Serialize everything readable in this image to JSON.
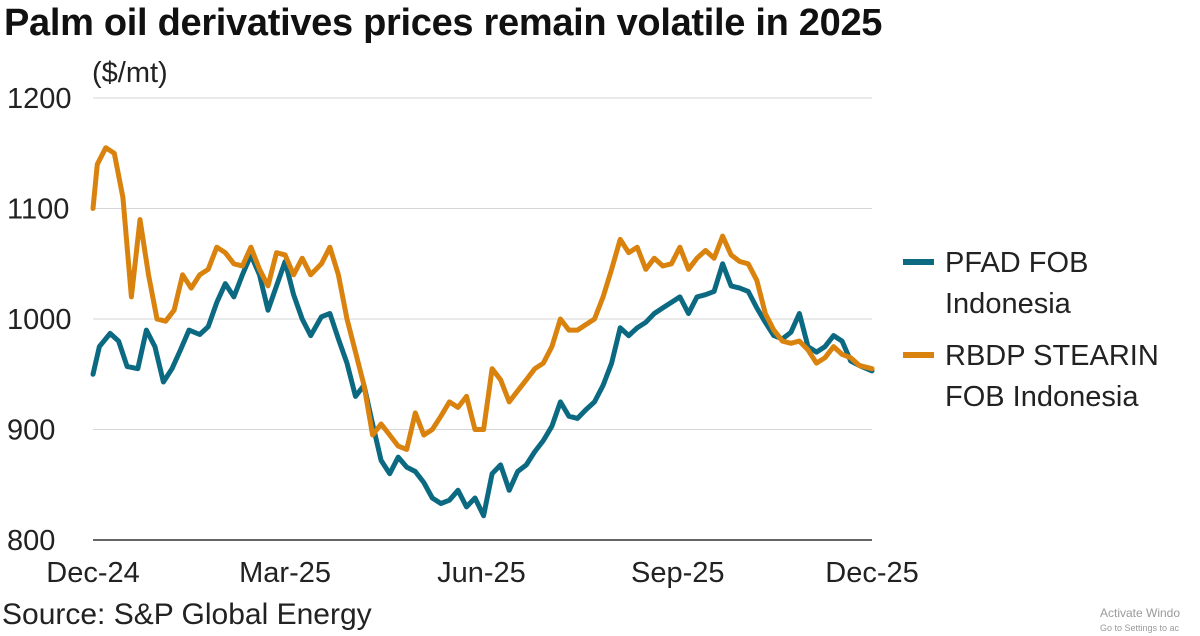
{
  "title": "Palm oil derivatives prices remain volatile in 2025",
  "source": "Source: S&P Global Energy",
  "watermark": {
    "line1": "Activate Windo",
    "line2": "Go to Settings to ac"
  },
  "chart_data": {
    "type": "line",
    "unit_label": "($/mt)",
    "ylim": [
      800,
      1200
    ],
    "yticks": [
      800,
      900,
      1000,
      1100,
      1200
    ],
    "xlim": [
      "2024-12-01",
      "2025-12-01"
    ],
    "xticks": [
      {
        "date": "2024-12-01",
        "label": "Dec-24"
      },
      {
        "date": "2025-03-01",
        "label": "Mar-25"
      },
      {
        "date": "2025-06-01",
        "label": "Jun-25"
      },
      {
        "date": "2025-09-01",
        "label": "Sep-25"
      },
      {
        "date": "2025-12-01",
        "label": "Dec-25"
      }
    ],
    "grid": true,
    "legend_position": "right",
    "series": [
      {
        "name_lines": [
          "PFAD FOB",
          "Indonesia"
        ],
        "color": "#0b6a82",
        "points": [
          [
            "2024-12-01",
            950
          ],
          [
            "2024-12-04",
            975
          ],
          [
            "2024-12-09",
            987
          ],
          [
            "2024-12-13",
            980
          ],
          [
            "2024-12-17",
            957
          ],
          [
            "2024-12-22",
            955
          ],
          [
            "2024-12-26",
            990
          ],
          [
            "2024-12-30",
            975
          ],
          [
            "2025-01-03",
            943
          ],
          [
            "2025-01-07",
            955
          ],
          [
            "2025-01-11",
            972
          ],
          [
            "2025-01-15",
            990
          ],
          [
            "2025-01-20",
            986
          ],
          [
            "2025-01-24",
            993
          ],
          [
            "2025-01-28",
            1015
          ],
          [
            "2025-02-01",
            1032
          ],
          [
            "2025-02-05",
            1020
          ],
          [
            "2025-02-09",
            1040
          ],
          [
            "2025-02-13",
            1058
          ],
          [
            "2025-02-17",
            1040
          ],
          [
            "2025-02-21",
            1008
          ],
          [
            "2025-02-25",
            1030
          ],
          [
            "2025-03-01",
            1052
          ],
          [
            "2025-03-05",
            1022
          ],
          [
            "2025-03-09",
            1000
          ],
          [
            "2025-03-13",
            985
          ],
          [
            "2025-03-18",
            1002
          ],
          [
            "2025-03-22",
            1005
          ],
          [
            "2025-03-26",
            982
          ],
          [
            "2025-03-30",
            960
          ],
          [
            "2025-04-03",
            930
          ],
          [
            "2025-04-07",
            940
          ],
          [
            "2025-04-11",
            905
          ],
          [
            "2025-04-15",
            872
          ],
          [
            "2025-04-19",
            860
          ],
          [
            "2025-04-23",
            875
          ],
          [
            "2025-04-27",
            866
          ],
          [
            "2025-05-01",
            862
          ],
          [
            "2025-05-05",
            852
          ],
          [
            "2025-05-09",
            838
          ],
          [
            "2025-05-13",
            833
          ],
          [
            "2025-05-17",
            836
          ],
          [
            "2025-05-21",
            845
          ],
          [
            "2025-05-25",
            830
          ],
          [
            "2025-05-29",
            838
          ],
          [
            "2025-06-02",
            822
          ],
          [
            "2025-06-06",
            860
          ],
          [
            "2025-06-10",
            868
          ],
          [
            "2025-06-14",
            845
          ],
          [
            "2025-06-18",
            862
          ],
          [
            "2025-06-22",
            868
          ],
          [
            "2025-06-26",
            880
          ],
          [
            "2025-06-30",
            890
          ],
          [
            "2025-07-04",
            903
          ],
          [
            "2025-07-08",
            925
          ],
          [
            "2025-07-12",
            912
          ],
          [
            "2025-07-16",
            910
          ],
          [
            "2025-07-20",
            918
          ],
          [
            "2025-07-24",
            925
          ],
          [
            "2025-07-28",
            940
          ],
          [
            "2025-08-01",
            960
          ],
          [
            "2025-08-05",
            992
          ],
          [
            "2025-08-09",
            985
          ],
          [
            "2025-08-13",
            992
          ],
          [
            "2025-08-17",
            997
          ],
          [
            "2025-08-21",
            1005
          ],
          [
            "2025-08-25",
            1010
          ],
          [
            "2025-08-29",
            1015
          ],
          [
            "2025-09-02",
            1020
          ],
          [
            "2025-09-06",
            1005
          ],
          [
            "2025-09-10",
            1020
          ],
          [
            "2025-09-14",
            1022
          ],
          [
            "2025-09-18",
            1025
          ],
          [
            "2025-09-22",
            1050
          ],
          [
            "2025-09-26",
            1030
          ],
          [
            "2025-09-30",
            1028
          ],
          [
            "2025-10-04",
            1025
          ],
          [
            "2025-10-08",
            1010
          ],
          [
            "2025-10-12",
            997
          ],
          [
            "2025-10-16",
            985
          ],
          [
            "2025-10-20",
            982
          ],
          [
            "2025-10-24",
            988
          ],
          [
            "2025-10-28",
            1005
          ],
          [
            "2025-11-01",
            975
          ],
          [
            "2025-11-05",
            970
          ],
          [
            "2025-11-09",
            975
          ],
          [
            "2025-11-13",
            985
          ],
          [
            "2025-11-17",
            980
          ],
          [
            "2025-11-21",
            962
          ],
          [
            "2025-11-25",
            958
          ],
          [
            "2025-12-01",
            953
          ]
        ]
      },
      {
        "name_lines": [
          "RBDP STEARIN",
          "FOB Indonesia"
        ],
        "color": "#d9820e",
        "points": [
          [
            "2024-12-01",
            1100
          ],
          [
            "2024-12-03",
            1140
          ],
          [
            "2024-12-07",
            1155
          ],
          [
            "2024-12-11",
            1150
          ],
          [
            "2024-12-15",
            1110
          ],
          [
            "2024-12-19",
            1020
          ],
          [
            "2024-12-23",
            1090
          ],
          [
            "2024-12-27",
            1040
          ],
          [
            "2024-12-31",
            1000
          ],
          [
            "2025-01-04",
            998
          ],
          [
            "2025-01-08",
            1008
          ],
          [
            "2025-01-12",
            1040
          ],
          [
            "2025-01-16",
            1028
          ],
          [
            "2025-01-20",
            1040
          ],
          [
            "2025-01-24",
            1045
          ],
          [
            "2025-01-28",
            1065
          ],
          [
            "2025-02-01",
            1060
          ],
          [
            "2025-02-05",
            1050
          ],
          [
            "2025-02-09",
            1048
          ],
          [
            "2025-02-13",
            1065
          ],
          [
            "2025-02-17",
            1045
          ],
          [
            "2025-02-21",
            1030
          ],
          [
            "2025-02-25",
            1060
          ],
          [
            "2025-03-01",
            1058
          ],
          [
            "2025-03-05",
            1040
          ],
          [
            "2025-03-09",
            1055
          ],
          [
            "2025-03-13",
            1040
          ],
          [
            "2025-03-18",
            1050
          ],
          [
            "2025-03-22",
            1065
          ],
          [
            "2025-03-26",
            1040
          ],
          [
            "2025-03-30",
            1000
          ],
          [
            "2025-04-03",
            970
          ],
          [
            "2025-04-07",
            940
          ],
          [
            "2025-04-11",
            895
          ],
          [
            "2025-04-15",
            905
          ],
          [
            "2025-04-19",
            895
          ],
          [
            "2025-04-23",
            885
          ],
          [
            "2025-04-27",
            882
          ],
          [
            "2025-05-01",
            915
          ],
          [
            "2025-05-05",
            895
          ],
          [
            "2025-05-09",
            900
          ],
          [
            "2025-05-13",
            912
          ],
          [
            "2025-05-17",
            925
          ],
          [
            "2025-05-21",
            920
          ],
          [
            "2025-05-25",
            930
          ],
          [
            "2025-05-29",
            900
          ],
          [
            "2025-06-02",
            900
          ],
          [
            "2025-06-06",
            955
          ],
          [
            "2025-06-10",
            945
          ],
          [
            "2025-06-14",
            925
          ],
          [
            "2025-06-18",
            935
          ],
          [
            "2025-06-22",
            945
          ],
          [
            "2025-06-26",
            955
          ],
          [
            "2025-06-30",
            960
          ],
          [
            "2025-07-04",
            975
          ],
          [
            "2025-07-08",
            1000
          ],
          [
            "2025-07-12",
            990
          ],
          [
            "2025-07-16",
            990
          ],
          [
            "2025-07-20",
            995
          ],
          [
            "2025-07-24",
            1000
          ],
          [
            "2025-07-28",
            1020
          ],
          [
            "2025-08-01",
            1045
          ],
          [
            "2025-08-05",
            1072
          ],
          [
            "2025-08-09",
            1060
          ],
          [
            "2025-08-13",
            1065
          ],
          [
            "2025-08-17",
            1045
          ],
          [
            "2025-08-21",
            1055
          ],
          [
            "2025-08-25",
            1048
          ],
          [
            "2025-08-29",
            1050
          ],
          [
            "2025-09-02",
            1065
          ],
          [
            "2025-09-06",
            1045
          ],
          [
            "2025-09-10",
            1055
          ],
          [
            "2025-09-14",
            1062
          ],
          [
            "2025-09-18",
            1055
          ],
          [
            "2025-09-22",
            1075
          ],
          [
            "2025-09-26",
            1058
          ],
          [
            "2025-09-30",
            1052
          ],
          [
            "2025-10-04",
            1050
          ],
          [
            "2025-10-08",
            1035
          ],
          [
            "2025-10-12",
            1005
          ],
          [
            "2025-10-16",
            990
          ],
          [
            "2025-10-20",
            980
          ],
          [
            "2025-10-24",
            978
          ],
          [
            "2025-10-28",
            980
          ],
          [
            "2025-11-01",
            972
          ],
          [
            "2025-11-05",
            960
          ],
          [
            "2025-11-09",
            965
          ],
          [
            "2025-11-13",
            975
          ],
          [
            "2025-11-17",
            968
          ],
          [
            "2025-11-21",
            965
          ],
          [
            "2025-11-25",
            958
          ],
          [
            "2025-12-01",
            955
          ]
        ]
      }
    ]
  }
}
